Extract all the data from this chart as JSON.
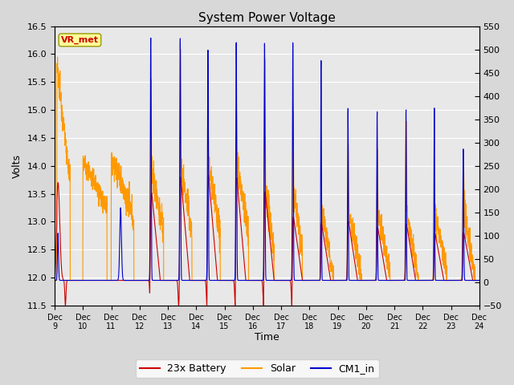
{
  "title": "System Power Voltage",
  "xlabel": "Time",
  "ylabel_left": "Volts",
  "ylim_left": [
    11.5,
    16.5
  ],
  "ylim_right": [
    -50,
    550
  ],
  "yticks_left": [
    11.5,
    12.0,
    12.5,
    13.0,
    13.5,
    14.0,
    14.5,
    15.0,
    15.5,
    16.0,
    16.5
  ],
  "yticks_right": [
    -50,
    0,
    50,
    100,
    150,
    200,
    250,
    300,
    350,
    400,
    450,
    500,
    550
  ],
  "xtick_labels": [
    "Dec 9",
    "Dec 10",
    "Dec 11",
    "Dec 12",
    "Dec 13",
    "Dec 14",
    "Dec 15",
    "Dec 16",
    "Dec 17",
    "Dec 18",
    "Dec 19",
    "Dec 20",
    "Dec 21",
    "Dec 22",
    "Dec 23",
    "Dec 24"
  ],
  "fig_bg_color": "#d8d8d8",
  "plot_bg_color": "#e8e8e8",
  "grid_color": "#ffffff",
  "line_colors": {
    "battery": "#cc0000",
    "solar": "#ff9900",
    "cm1": "#0000cc"
  },
  "legend_labels": [
    "23x Battery",
    "Solar",
    "CM1_in"
  ],
  "vr_met_label": "VR_met",
  "vr_met_color": "#cc0000",
  "vr_met_bg": "#ffff99",
  "vr_met_border": "#999900"
}
